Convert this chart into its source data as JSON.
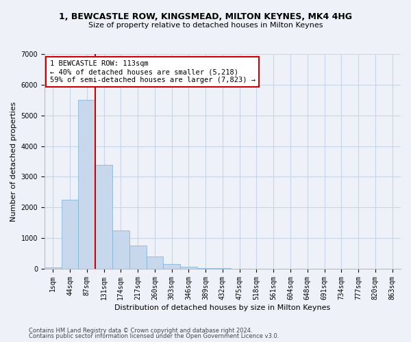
{
  "title_line1": "1, BEWCASTLE ROW, KINGSMEAD, MILTON KEYNES, MK4 4HG",
  "title_line2": "Size of property relative to detached houses in Milton Keynes",
  "xlabel": "Distribution of detached houses by size in Milton Keynes",
  "ylabel": "Number of detached properties",
  "footnote1": "Contains HM Land Registry data © Crown copyright and database right 2024.",
  "footnote2": "Contains public sector information licensed under the Open Government Licence v3.0.",
  "bar_color": "#c8d8ec",
  "bar_edge_color": "#7aaed4",
  "grid_color": "#c8d4e8",
  "annotation_box_edgecolor": "#cc0000",
  "vline_color": "#cc0000",
  "annotation_text_line1": "1 BEWCASTLE ROW: 113sqm",
  "annotation_text_line2": "← 40% of detached houses are smaller (5,218)",
  "annotation_text_line3": "59% of semi-detached houses are larger (7,823) →",
  "categories": [
    "1sqm",
    "44sqm",
    "87sqm",
    "131sqm",
    "174sqm",
    "217sqm",
    "260sqm",
    "303sqm",
    "346sqm",
    "389sqm",
    "432sqm",
    "475sqm",
    "518sqm",
    "561sqm",
    "604sqm",
    "648sqm",
    "691sqm",
    "734sqm",
    "777sqm",
    "820sqm",
    "863sqm"
  ],
  "values": [
    50,
    2250,
    5500,
    3400,
    1250,
    750,
    400,
    150,
    75,
    30,
    15,
    5,
    3,
    2,
    1,
    0,
    0,
    0,
    0,
    0,
    0
  ],
  "ylim": [
    0,
    7000
  ],
  "yticks": [
    0,
    1000,
    2000,
    3000,
    4000,
    5000,
    6000,
    7000
  ],
  "vline_x_index": 2.5,
  "background_color": "#eef2f8",
  "title_fontsize": 9,
  "subtitle_fontsize": 8,
  "axis_label_fontsize": 8,
  "tick_fontsize": 7,
  "footnote_fontsize": 6,
  "annotation_fontsize": 7.5
}
